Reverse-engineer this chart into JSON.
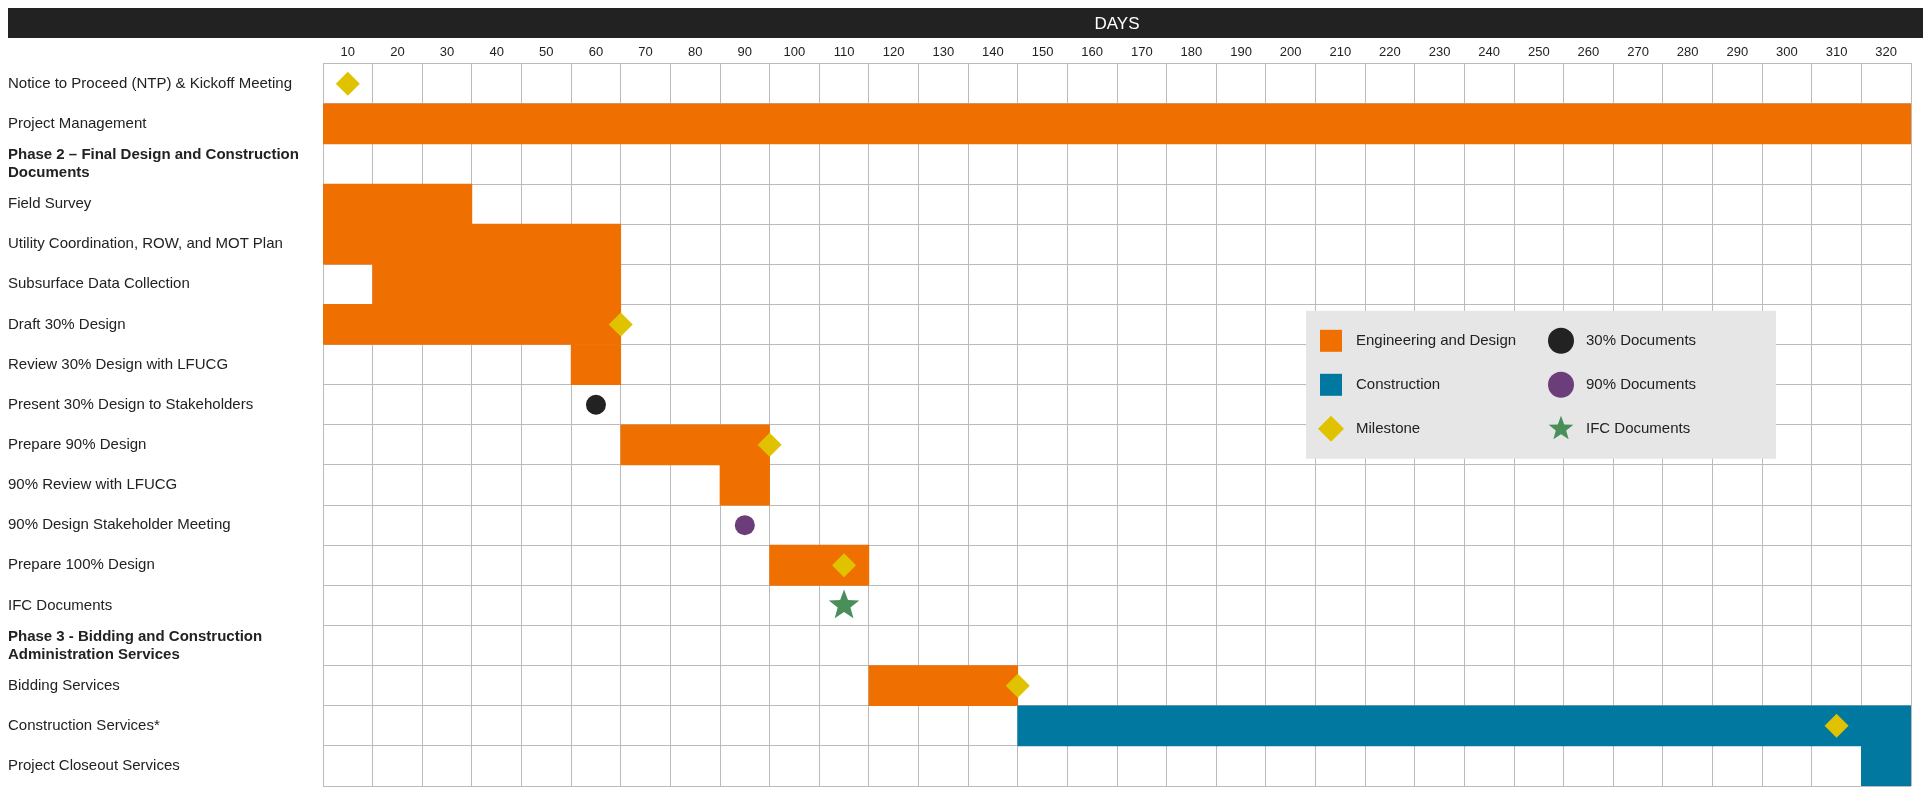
{
  "chart_data": {
    "type": "bar",
    "orientation": "horizontal",
    "xlabel": "DAYS",
    "xlim": [
      5,
      325
    ],
    "xticks": [
      {
        "value": 5,
        "label": null
      },
      10,
      {
        "value": 15,
        "label": null
      },
      20,
      {
        "value": 25,
        "label": null
      },
      30,
      {
        "value": 35,
        "label": null
      },
      40,
      {
        "value": 45,
        "label": null
      },
      50,
      {
        "value": 55,
        "label": null
      },
      60,
      {
        "value": 65,
        "label": null
      },
      70,
      {
        "value": 75,
        "label": null
      },
      80,
      {
        "value": 85,
        "label": null
      },
      90,
      {
        "value": 95,
        "label": null
      },
      100,
      {
        "value": 105,
        "label": null
      },
      110,
      {
        "value": 115,
        "label": null
      },
      120,
      {
        "value": 125,
        "label": null
      },
      130,
      {
        "value": 135,
        "label": null
      },
      140,
      {
        "value": 145,
        "label": null
      },
      150,
      {
        "value": 155,
        "label": null
      },
      160,
      {
        "value": 165,
        "label": null
      },
      170,
      {
        "value": 175,
        "label": null
      },
      180,
      {
        "value": 185,
        "label": null
      },
      190,
      {
        "value": 195,
        "label": null
      },
      200,
      {
        "value": 205,
        "label": null
      },
      210,
      {
        "value": 215,
        "label": null
      },
      220,
      {
        "value": 225,
        "label": null
      },
      230,
      {
        "value": 235,
        "label": null
      },
      240,
      {
        "value": 245,
        "label": null
      },
      250,
      {
        "value": 255,
        "label": null
      },
      260,
      {
        "value": 265,
        "label": null
      },
      270,
      {
        "value": 275,
        "label": null
      },
      280,
      {
        "value": 285,
        "label": null
      },
      290,
      {
        "value": 295,
        "label": null
      },
      300,
      {
        "value": 305,
        "label": null
      },
      310,
      {
        "value": 315,
        "label": null
      },
      320,
      {
        "value": 325,
        "label": null
      }
    ],
    "categories": [
      "Notice to Proceed (NTP) & Kickoff Meeting",
      "Project Management",
      "Phase 2 – Final Design and Construction Documents",
      "Field Survey",
      "Utility Coordination, ROW, and MOT Plan",
      "Subsurface Data Collection",
      "Draft 30% Design",
      "Review 30% Design with LFUCG",
      "Present 30% Design to Stakeholders",
      "Prepare 90% Design",
      "90% Review with LFUCG",
      "90% Design Stakeholder Meeting",
      "Prepare 100% Design",
      "IFC Documents",
      "Phase 3 - Bidding and Construction Administration Services",
      "Bidding Services",
      "Construction Services*",
      "Project Closeout Services"
    ],
    "series": [
      {
        "name": "Engineering and Design",
        "color": "#ef7000",
        "values": [
          null,
          320,
          null,
          30,
          60,
          50,
          60,
          10,
          null,
          30,
          10,
          null,
          20,
          null,
          null,
          30,
          null,
          null
        ],
        "base": [
          null,
          5,
          null,
          5,
          5,
          15,
          5,
          55,
          null,
          65,
          85,
          null,
          95,
          null,
          null,
          115,
          null,
          null
        ]
      },
      {
        "name": "Construction",
        "color": "#0078a0",
        "values": [
          null,
          null,
          null,
          null,
          null,
          null,
          null,
          null,
          null,
          null,
          null,
          null,
          null,
          null,
          null,
          null,
          180,
          10
        ],
        "base": [
          null,
          null,
          null,
          null,
          null,
          null,
          null,
          null,
          null,
          null,
          null,
          null,
          null,
          null,
          null,
          null,
          145,
          315
        ]
      },
      {
        "name": "Milestone",
        "type": "scatter",
        "marker": "diamond",
        "color": "#e0c200",
        "x": [
          "Notice to Proceed (NTP) & Kickoff Meeting",
          "Draft 30% Design",
          "Prepare 90% Design",
          "Prepare 100% Design",
          "Bidding Services",
          "Construction Services*"
        ],
        "values": [
          10,
          65,
          95,
          110,
          145,
          310
        ]
      },
      {
        "name": "30% Documents",
        "type": "scatter",
        "marker": "circle",
        "color": "#222222",
        "x": [
          "Present 30% Design to Stakeholders"
        ],
        "values": [
          60
        ]
      },
      {
        "name": "90% Documents",
        "type": "scatter",
        "marker": "circle",
        "color": "#6b3d7a",
        "x": [
          "90% Design Stakeholder Meeting"
        ],
        "values": [
          90
        ]
      },
      {
        "name": "IFC Documents",
        "type": "scatter",
        "marker": "star",
        "color": "#4a8f5a",
        "x": [
          "IFC Documents"
        ],
        "values": [
          110
        ]
      }
    ],
    "grid": true,
    "legend": "right"
  }
}
